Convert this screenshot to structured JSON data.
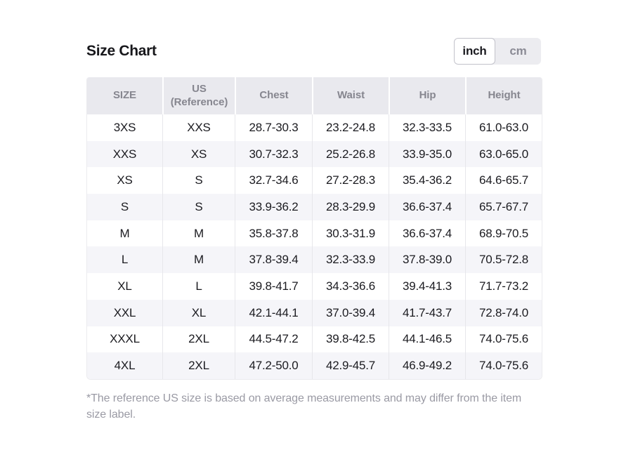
{
  "title": "Size Chart",
  "unit_toggle": {
    "selected": "inch",
    "options": {
      "inch": "inch",
      "cm": "cm"
    }
  },
  "table": {
    "headers": {
      "size": "SIZE",
      "us": "US\n(Reference)",
      "chest": "Chest",
      "waist": "Waist",
      "hip": "Hip",
      "height": "Height"
    },
    "rows": [
      [
        "3XS",
        "XXS",
        "28.7-30.3",
        "23.2-24.8",
        "32.3-33.5",
        "61.0-63.0"
      ],
      [
        "XXS",
        "XS",
        "30.7-32.3",
        "25.2-26.8",
        "33.9-35.0",
        "63.0-65.0"
      ],
      [
        "XS",
        "S",
        "32.7-34.6",
        "27.2-28.3",
        "35.4-36.2",
        "64.6-65.7"
      ],
      [
        "S",
        "S",
        "33.9-36.2",
        "28.3-29.9",
        "36.6-37.4",
        "65.7-67.7"
      ],
      [
        "M",
        "M",
        "35.8-37.8",
        "30.3-31.9",
        "36.6-37.4",
        "68.9-70.5"
      ],
      [
        "L",
        "M",
        "37.8-39.4",
        "32.3-33.9",
        "37.8-39.0",
        "70.5-72.8"
      ],
      [
        "XL",
        "L",
        "39.8-41.7",
        "34.3-36.6",
        "39.4-41.3",
        "71.7-73.2"
      ],
      [
        "XXL",
        "XL",
        "42.1-44.1",
        "37.0-39.4",
        "41.7-43.7",
        "72.8-74.0"
      ],
      [
        "XXXL",
        "2XL",
        "44.5-47.2",
        "39.8-42.5",
        "44.1-46.5",
        "74.0-75.6"
      ],
      [
        "4XL",
        "2XL",
        "47.2-50.0",
        "42.9-45.7",
        "46.9-49.2",
        "74.0-75.6"
      ]
    ]
  },
  "footnote": "*The reference US size is based on average measurements and may differ from the item size label.",
  "colors": {
    "header_bg": "#e9e9ee",
    "row_alt_bg": "#f5f5f9",
    "cell_text": "#1b1b20",
    "header_text": "#86868f",
    "muted_text": "#9a9aa4",
    "divider": "#e7e7eb",
    "toggle_bg": "#ececf0",
    "toggle_selected_border": "#c2c2ca"
  }
}
